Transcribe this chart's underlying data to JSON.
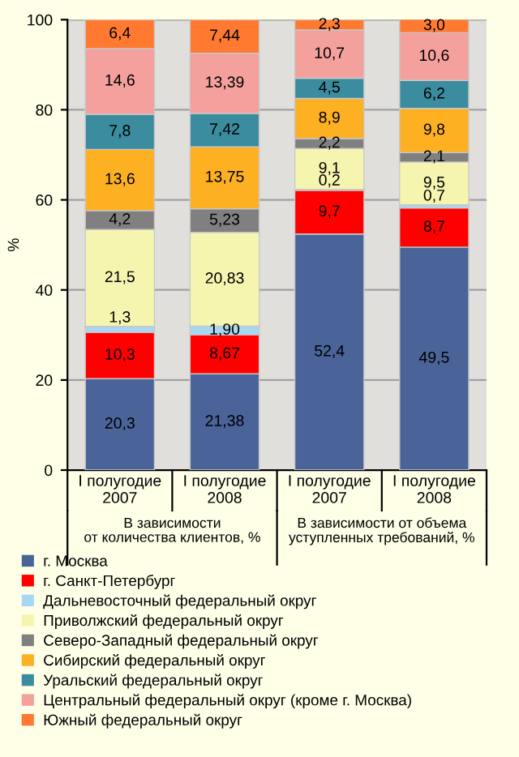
{
  "chart_data": {
    "type": "bar",
    "stacked": true,
    "ylabel": "%",
    "ylim": [
      0,
      100
    ],
    "yticks": [
      0,
      20,
      40,
      60,
      80,
      100
    ],
    "grid": "y",
    "legend": "bottom",
    "categories": [
      "I полугодие\n2007",
      "I полугодие\n2008",
      "I полугодие\n2007",
      "I полугодие\n2008"
    ],
    "annotations": [
      "В зависимости\nот количества клиентов, %",
      "В зависимости от объема\nуступленных требований, %"
    ],
    "series": [
      {
        "name": "г. Москва",
        "color": "#4a6499",
        "values": [
          20.3,
          21.38,
          52.4,
          49.5
        ],
        "value_labels": [
          "20,3",
          "21,38",
          "52,4",
          "49,5"
        ]
      },
      {
        "name": "г. Санкт-Петербург",
        "color": "#ff0000",
        "values": [
          10.3,
          8.67,
          9.7,
          8.7
        ],
        "value_labels": [
          "10,3",
          "8,67",
          "9,7",
          "8,7"
        ]
      },
      {
        "name": "Дальневосточный федеральный округ",
        "color": "#a6d8f5",
        "values": [
          1.3,
          1.9,
          0.2,
          0.7
        ],
        "value_labels": [
          "1,3",
          "1,90",
          "0,2",
          "0,7"
        ]
      },
      {
        "name": "Приволжский федеральный округ",
        "color": "#f5f5b0",
        "values": [
          21.5,
          20.83,
          9.1,
          9.5
        ],
        "value_labels": [
          "21,5",
          "20,83",
          "9,1",
          "9,5"
        ]
      },
      {
        "name": "Северо-Западный федеральный округ",
        "color": "#808080",
        "values": [
          4.2,
          5.23,
          2.2,
          2.1
        ],
        "value_labels": [
          "4,2",
          "5,23",
          "2,2",
          "2,1"
        ]
      },
      {
        "name": "Сибирский федеральный округ",
        "color": "#fdb022",
        "values": [
          13.6,
          13.75,
          8.9,
          9.8
        ],
        "value_labels": [
          "13,6",
          "13,75",
          "8,9",
          "9,8"
        ]
      },
      {
        "name": "Уральский федеральный округ",
        "color": "#3a8c9e",
        "values": [
          7.8,
          7.42,
          4.5,
          6.2
        ],
        "value_labels": [
          "7,8",
          "7,42",
          "4,5",
          "6,2"
        ]
      },
      {
        "name": "Центральный федеральный округ (кроме г. Москва)",
        "color": "#f4a09c",
        "values": [
          14.6,
          13.39,
          10.7,
          10.6
        ],
        "value_labels": [
          "14,6",
          "13,39",
          "10,7",
          "10,6"
        ]
      },
      {
        "name": "Южный федеральный округ",
        "color": "#ff7a30",
        "values": [
          6.4,
          7.44,
          2.3,
          3.0
        ],
        "value_labels": [
          "6,4",
          "7,44",
          "2,3",
          "3,0"
        ]
      }
    ]
  }
}
